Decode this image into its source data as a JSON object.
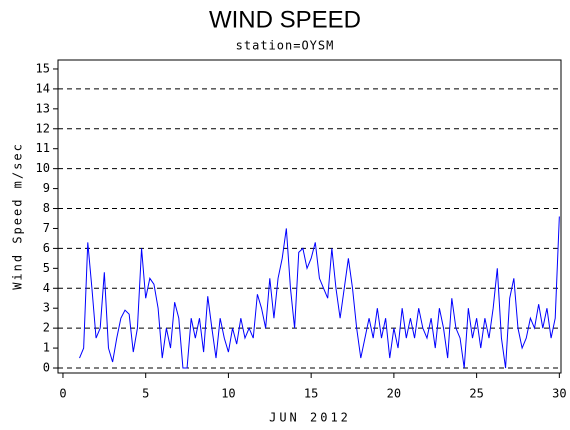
{
  "chart_data": {
    "type": "line",
    "title": "WIND SPEED",
    "subtitle": "station=OYSM",
    "ylabel": "Wind Speed m/sec",
    "xlabel": "JUN 2012",
    "color": "#0000ff",
    "x": [
      1,
      1.25,
      1.5,
      1.75,
      2,
      2.25,
      2.5,
      2.75,
      3,
      3.25,
      3.5,
      3.75,
      4,
      4.25,
      4.5,
      4.75,
      5,
      5.25,
      5.5,
      5.75,
      6,
      6.25,
      6.5,
      6.75,
      7,
      7.25,
      7.5,
      7.75,
      8,
      8.25,
      8.5,
      8.75,
      9,
      9.25,
      9.5,
      9.75,
      10,
      10.25,
      10.5,
      10.75,
      11,
      11.25,
      11.5,
      11.75,
      12,
      12.25,
      12.5,
      12.75,
      13,
      13.25,
      13.5,
      13.75,
      14,
      14.25,
      14.5,
      14.75,
      15,
      15.25,
      15.5,
      15.75,
      16,
      16.25,
      16.5,
      16.75,
      17,
      17.25,
      17.5,
      17.75,
      18,
      18.25,
      18.5,
      18.75,
      19,
      19.25,
      19.5,
      19.75,
      20,
      20.25,
      20.5,
      20.75,
      21,
      21.25,
      21.5,
      21.75,
      22,
      22.25,
      22.5,
      22.75,
      23,
      23.25,
      23.5,
      23.75,
      24,
      24.25,
      24.5,
      24.75,
      25,
      25.25,
      25.5,
      25.75,
      26,
      26.25,
      26.5,
      26.75,
      27,
      27.25,
      27.5,
      27.75,
      28,
      28.25,
      28.5,
      28.75,
      29,
      29.25,
      29.5,
      29.75,
      30
    ],
    "values": [
      0.5,
      1.0,
      6.3,
      4.0,
      1.5,
      2.0,
      4.8,
      1.0,
      0.3,
      1.5,
      2.5,
      2.9,
      2.7,
      0.8,
      2.0,
      6.0,
      3.5,
      4.5,
      4.2,
      3.0,
      0.5,
      2.0,
      1.0,
      3.3,
      2.5,
      0.0,
      0.0,
      2.5,
      1.5,
      2.5,
      0.8,
      3.6,
      2.0,
      0.5,
      2.5,
      1.5,
      0.8,
      2.0,
      1.2,
      2.5,
      1.5,
      2.0,
      1.5,
      3.7,
      3.0,
      2.0,
      4.5,
      2.5,
      4.5,
      5.5,
      7.0,
      4.0,
      2.0,
      5.8,
      6.0,
      5.0,
      5.5,
      6.3,
      4.5,
      4.0,
      3.5,
      6.0,
      4.0,
      2.5,
      4.0,
      5.5,
      4.0,
      2.0,
      0.5,
      1.5,
      2.5,
      1.5,
      3.0,
      1.5,
      2.5,
      0.5,
      2.0,
      1.0,
      3.0,
      1.5,
      2.5,
      1.5,
      3.0,
      2.0,
      1.5,
      2.5,
      1.0,
      3.0,
      2.0,
      0.5,
      3.5,
      2.0,
      1.5,
      0.0,
      3.0,
      1.5,
      2.5,
      1.0,
      2.5,
      1.5,
      3.0,
      5.0,
      1.5,
      0.0,
      3.5,
      4.5,
      2.0,
      1.0,
      1.5,
      2.5,
      2.0,
      3.2,
      2.0,
      3.0,
      1.5,
      2.5,
      7.6
    ],
    "xlim": [
      -0.3,
      30.1
    ],
    "xticks": [
      0,
      5,
      10,
      15,
      20,
      25,
      30
    ],
    "ylim": [
      -0.25,
      15.45
    ],
    "yticks": [
      0,
      1,
      2,
      3,
      4,
      5,
      6,
      7,
      8,
      9,
      10,
      11,
      12,
      13,
      14,
      15
    ],
    "ygrid": [
      0,
      2,
      4,
      6,
      8,
      10,
      12,
      14
    ]
  }
}
